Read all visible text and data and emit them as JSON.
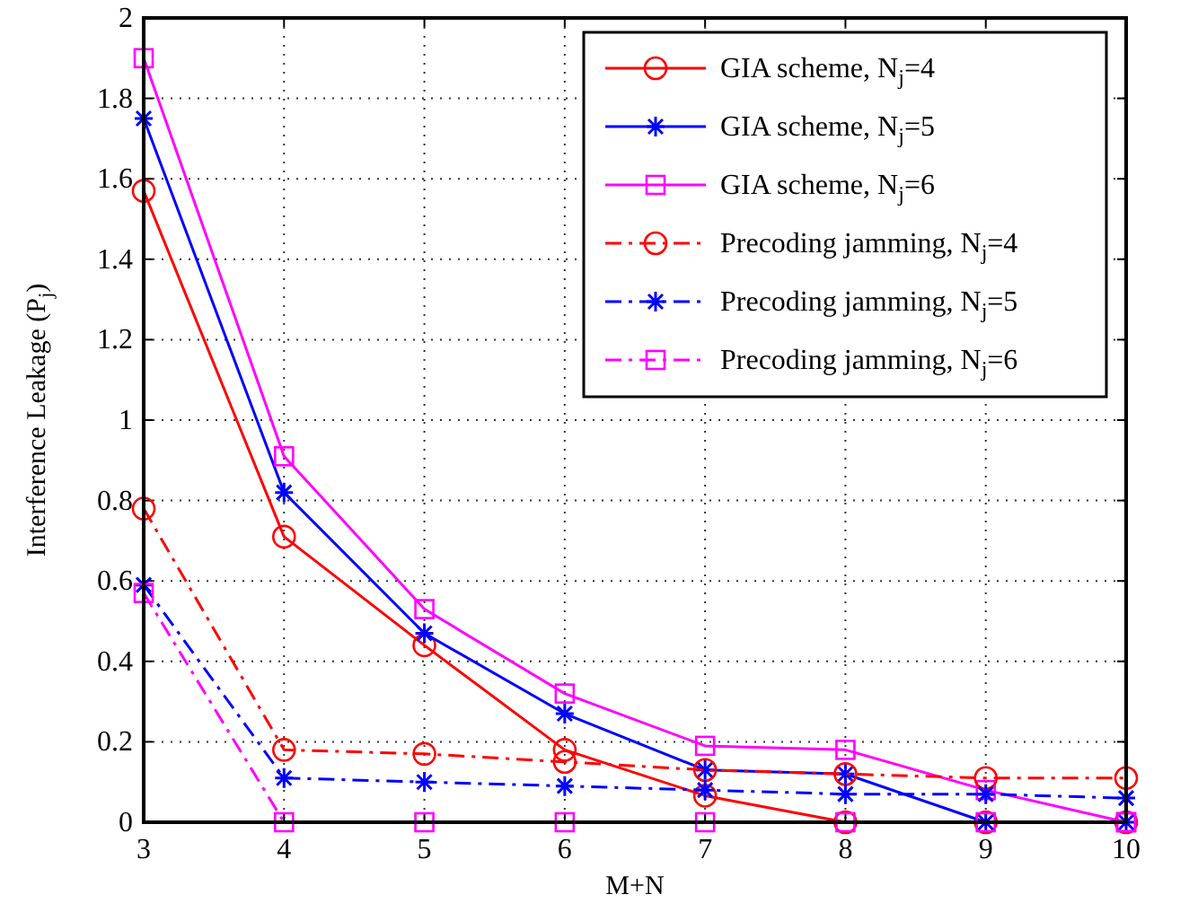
{
  "chart_data": {
    "type": "line",
    "xlabel": "M+N",
    "ylabel": "Interference Leakage (P$_{j}$)",
    "x": [
      3,
      4,
      5,
      6,
      7,
      8,
      9,
      10
    ],
    "xlim": [
      3,
      10
    ],
    "xticks": [
      3,
      4,
      5,
      6,
      7,
      8,
      9,
      10
    ],
    "ylim": [
      0,
      2
    ],
    "yticks": [
      0,
      0.2,
      0.4,
      0.6,
      0.8,
      1,
      1.2,
      1.4,
      1.6,
      1.8,
      2
    ],
    "grid": true,
    "legend": "top right",
    "series": [
      {
        "name": "GIA scheme, N$_{j}$=4",
        "color": "#ff0000",
        "marker": "circle",
        "line_style": "solid",
        "values": [
          1.57,
          0.71,
          0.44,
          0.18,
          0.066,
          0,
          0,
          0
        ]
      },
      {
        "name": "GIA scheme, N$_{j}$=5",
        "color": "#0000ff",
        "marker": "cross",
        "line_style": "solid",
        "values": [
          1.75,
          0.82,
          0.47,
          0.27,
          0.13,
          0.12,
          0,
          0
        ]
      },
      {
        "name": "GIA scheme, N$_{j}$=6",
        "color": "#ff00ff",
        "marker": "square",
        "line_style": "solid",
        "values": [
          1.9,
          0.91,
          0.53,
          0.32,
          0.19,
          0.18,
          0.08,
          0
        ]
      },
      {
        "name": "Precoding jamming, N$_{j}$=4",
        "color": "#ff0000",
        "marker": "circle",
        "line_style": "dashdot",
        "values": [
          0.78,
          0.18,
          0.17,
          0.15,
          0.13,
          0.12,
          0.11,
          0.11
        ]
      },
      {
        "name": "Precoding jamming, N$_{j}$=5",
        "color": "#0000ff",
        "marker": "cross",
        "line_style": "dashdot",
        "values": [
          0.59,
          0.11,
          0.1,
          0.09,
          0.08,
          0.07,
          0.07,
          0.06
        ]
      },
      {
        "name": "Precoding jamming, N$_{j}$=6",
        "color": "#ff00ff",
        "marker": "square",
        "line_style": "dashdot",
        "values": [
          0.57,
          0,
          0,
          0,
          0,
          0,
          0,
          0
        ]
      }
    ]
  }
}
